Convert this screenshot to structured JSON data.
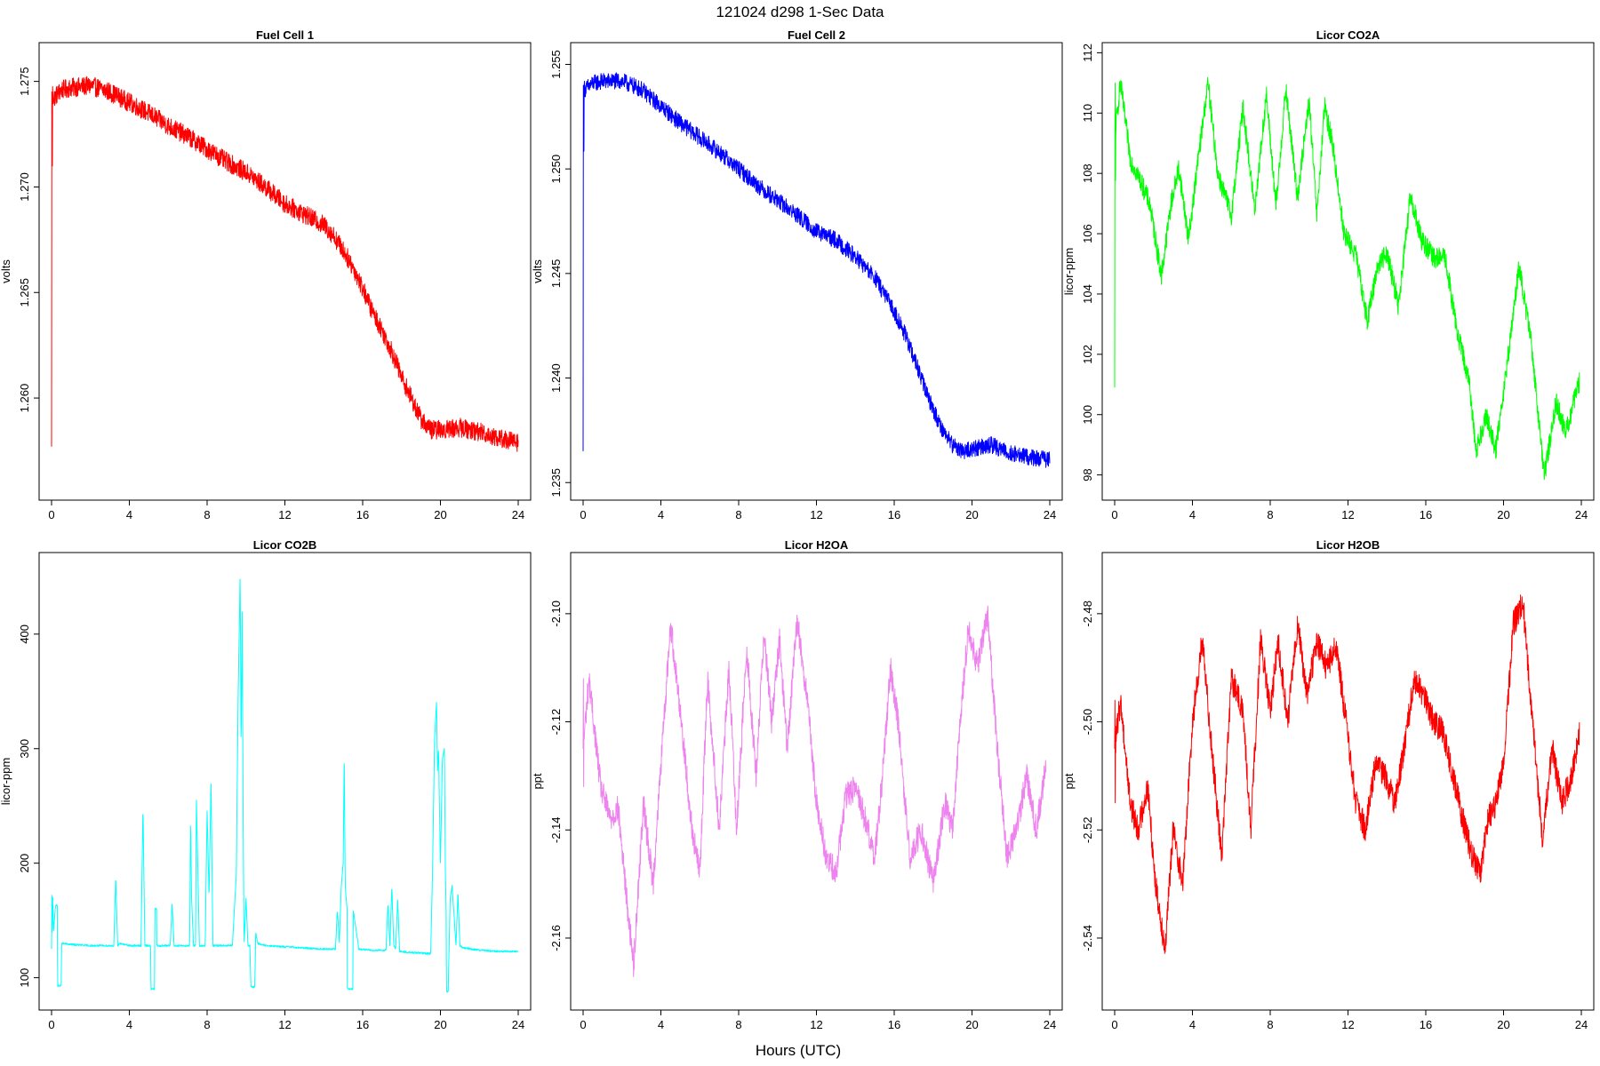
{
  "figure": {
    "title": "121024   d298   1-Sec Data",
    "xlabel": "Hours (UTC)"
  },
  "chart_data": [
    {
      "type": "line",
      "title": "Fuel Cell 1",
      "ylabel": "volts",
      "xlim": [
        0,
        24
      ],
      "ylim": [
        1.2555,
        1.2765
      ],
      "xticks": [
        0,
        4,
        8,
        12,
        16,
        20,
        24
      ],
      "yticks": [
        1.26,
        1.265,
        1.27,
        1.275
      ],
      "ytick_labels": [
        "1.260",
        "1.265",
        "1.270",
        "1.275"
      ],
      "color": "#ff0000",
      "noise": 0.00045,
      "series": [
        {
          "x": [
            0,
            0.05,
            0.1,
            0.5,
            1,
            2,
            3,
            4,
            5,
            6,
            7,
            8,
            9,
            10,
            11,
            12,
            13,
            14,
            14.5,
            15,
            15.5,
            16,
            16.5,
            17,
            17.5,
            18,
            18.5,
            19,
            19.5,
            20,
            21,
            22,
            23,
            24
          ],
          "values": [
            1.2577,
            1.2745,
            1.2742,
            1.2746,
            1.2747,
            1.2748,
            1.2745,
            1.274,
            1.2735,
            1.2729,
            1.2724,
            1.2718,
            1.2712,
            1.2707,
            1.27,
            1.2692,
            1.2687,
            1.2682,
            1.2677,
            1.267,
            1.2662,
            1.2652,
            1.2641,
            1.2632,
            1.2622,
            1.261,
            1.26,
            1.259,
            1.2585,
            1.2585,
            1.2586,
            1.2584,
            1.2581,
            1.2579
          ]
        }
      ]
    },
    {
      "type": "line",
      "title": "Fuel Cell 2",
      "ylabel": "volts",
      "xlim": [
        0,
        24
      ],
      "ylim": [
        1.2345,
        1.2557
      ],
      "xticks": [
        0,
        4,
        8,
        12,
        16,
        20,
        24
      ],
      "yticks": [
        1.235,
        1.24,
        1.245,
        1.25,
        1.255
      ],
      "ytick_labels": [
        "1.235",
        "1.240",
        "1.245",
        "1.250",
        "1.255"
      ],
      "color": "#0000ff",
      "noise": 0.0004,
      "series": [
        {
          "x": [
            0,
            0.05,
            0.1,
            0.5,
            1,
            2,
            3,
            4,
            5,
            6,
            7,
            8,
            9,
            10,
            11,
            12,
            13,
            14,
            15,
            16,
            16.5,
            17,
            17.5,
            18,
            18.5,
            19,
            19.5,
            20,
            21,
            22,
            23,
            24
          ],
          "values": [
            1.2365,
            1.254,
            1.2538,
            1.2541,
            1.2542,
            1.2542,
            1.2538,
            1.253,
            1.2522,
            1.2515,
            1.2508,
            1.25,
            1.2492,
            1.2485,
            1.2478,
            1.247,
            1.2466,
            1.2458,
            1.2448,
            1.2432,
            1.2422,
            1.241,
            1.2397,
            1.2385,
            1.2375,
            1.2368,
            1.2365,
            1.2366,
            1.2368,
            1.2364,
            1.2362,
            1.2361
          ]
        }
      ]
    },
    {
      "type": "line",
      "title": "Licor CO2A",
      "ylabel": "licor-ppm",
      "xlim": [
        0,
        24
      ],
      "ylim": [
        97.4,
        112.1
      ],
      "xticks": [
        0,
        4,
        8,
        12,
        16,
        20,
        24
      ],
      "yticks": [
        98,
        100,
        102,
        104,
        106,
        108,
        110,
        112
      ],
      "ytick_labels": [
        "98",
        "100",
        "102",
        "104",
        "106",
        "108",
        "110",
        "112"
      ],
      "color": "#00ff00",
      "noise": 0.35,
      "series": [
        {
          "x": [
            0,
            0.05,
            0.3,
            0.8,
            1.3,
            1.8,
            2.4,
            2.9,
            3.3,
            3.8,
            4.3,
            4.8,
            5.3,
            6.0,
            6.6,
            7.2,
            7.8,
            8.3,
            8.8,
            9.4,
            10.0,
            10.4,
            10.8,
            11.2,
            11.8,
            12.4,
            13.0,
            13.5,
            14.0,
            14.6,
            15.2,
            15.8,
            16.4,
            17.0,
            17.6,
            18.2,
            18.6,
            19.1,
            19.6,
            20.2,
            20.8,
            21.4,
            22.1,
            22.7,
            23.2,
            23.9
          ],
          "values": [
            100.9,
            109.5,
            111.0,
            108.5,
            107.8,
            107.0,
            104.6,
            107.0,
            108.2,
            105.8,
            108.5,
            111.0,
            108.0,
            106.6,
            110.2,
            106.8,
            110.6,
            106.9,
            110.8,
            107.2,
            110.4,
            106.6,
            110.2,
            109.0,
            106.0,
            105.3,
            103.1,
            104.9,
            105.4,
            103.6,
            107.2,
            105.8,
            105.2,
            105.2,
            102.8,
            101.2,
            98.8,
            100.0,
            98.8,
            101.8,
            104.9,
            102.5,
            98.0,
            100.4,
            99.4,
            101.1
          ]
        }
      ]
    },
    {
      "type": "line",
      "title": "Licor CO2B",
      "ylabel": "licor-ppm",
      "xlim": [
        0,
        24
      ],
      "ylim": [
        78,
        465
      ],
      "xticks": [
        0,
        4,
        8,
        12,
        16,
        20,
        24
      ],
      "yticks": [
        100,
        200,
        300,
        400
      ],
      "ytick_labels": [
        "100",
        "200",
        "300",
        "400"
      ],
      "color": "#00ffff",
      "noise": 0.8,
      "series": [
        {
          "x": [
            0,
            0.05,
            0.1,
            0.2,
            0.3,
            0.31,
            0.4,
            0.41,
            0.5,
            0.51,
            1.0,
            2.0,
            3.2,
            3.3,
            3.4,
            3.5,
            4.0,
            4.6,
            4.7,
            4.8,
            4.9,
            5.1,
            5.11,
            5.3,
            5.31,
            5.4,
            5.41,
            5.7,
            6.1,
            6.2,
            6.3,
            6.4,
            6.8,
            7.1,
            7.15,
            7.2,
            7.3,
            7.4,
            7.45,
            7.6,
            7.9,
            8.0,
            8.1,
            8.2,
            8.3,
            8.6,
            9.3,
            9.5,
            9.6,
            9.7,
            9.75,
            9.8,
            9.85,
            9.9,
            10.0,
            10.1,
            10.2,
            10.25,
            10.3,
            10.45,
            10.5,
            10.6,
            11.0,
            12.0,
            13.0,
            14.0,
            14.6,
            14.7,
            14.8,
            14.9,
            15.0,
            15.05,
            15.1,
            15.2,
            15.21,
            15.5,
            15.51,
            15.8,
            16.5,
            17.2,
            17.3,
            17.4,
            17.5,
            17.6,
            17.7,
            17.8,
            17.9,
            18.5,
            19.5,
            19.6,
            19.7,
            19.8,
            19.85,
            19.9,
            20.0,
            20.1,
            20.2,
            20.25,
            20.3,
            20.31,
            20.4,
            20.5,
            20.6,
            20.8,
            20.9,
            21.0,
            21.2,
            22.0,
            23.0,
            24.0
          ],
          "values": [
            125,
            172,
            140,
            163,
            163,
            93,
            93,
            93,
            93,
            130,
            129,
            128,
            128,
            188,
            128,
            130,
            128,
            128,
            250,
            128,
            128,
            128,
            90,
            90,
            160,
            160,
            128,
            128,
            128,
            165,
            128,
            128,
            128,
            128,
            240,
            170,
            128,
            128,
            258,
            128,
            128,
            245,
            170,
            270,
            128,
            128,
            128,
            190,
            350,
            455,
            300,
            420,
            250,
            128,
            170,
            128,
            128,
            92,
            92,
            92,
            140,
            130,
            128,
            127,
            126,
            125,
            125,
            160,
            130,
            180,
            200,
            295,
            180,
            160,
            90,
            90,
            160,
            125,
            124,
            124,
            165,
            128,
            180,
            128,
            125,
            168,
            123,
            122,
            121,
            200,
            310,
            340,
            280,
            300,
            200,
            290,
            300,
            200,
            150,
            88,
            88,
            170,
            180,
            128,
            175,
            128,
            126,
            124,
            123,
            123
          ]
        }
      ]
    },
    {
      "type": "line",
      "title": "Licor H2OA",
      "ylabel": "ppt",
      "xlim": [
        0,
        24
      ],
      "ylim": [
        -2.172,
        -2.09
      ],
      "xticks": [
        0,
        4,
        8,
        12,
        16,
        20,
        24
      ],
      "yticks": [
        -2.16,
        -2.14,
        -2.12,
        -2.1
      ],
      "ytick_labels": [
        "-2.16",
        "-2.14",
        "-2.12",
        "-2.10"
      ],
      "color": "#ee82ee",
      "noise": 0.0025,
      "series": [
        {
          "x": [
            0,
            0.3,
            0.9,
            1.4,
            1.8,
            2.3,
            2.6,
            3.1,
            3.6,
            4.0,
            4.5,
            5.0,
            5.6,
            6.0,
            6.4,
            7.0,
            7.5,
            7.9,
            8.4,
            8.9,
            9.3,
            9.7,
            10.1,
            10.5,
            11.0,
            11.5,
            12.0,
            12.5,
            13.0,
            13.5,
            14.0,
            14.5,
            15.0,
            15.4,
            15.8,
            16.2,
            16.8,
            17.4,
            18.0,
            18.6,
            19.0,
            19.4,
            19.8,
            20.3,
            20.8,
            21.3,
            21.8,
            22.3,
            22.8,
            23.3,
            23.8
          ],
          "values": [
            -2.125,
            -2.112,
            -2.132,
            -2.138,
            -2.136,
            -2.155,
            -2.165,
            -2.135,
            -2.15,
            -2.128,
            -2.102,
            -2.118,
            -2.14,
            -2.148,
            -2.112,
            -2.14,
            -2.11,
            -2.14,
            -2.106,
            -2.13,
            -2.103,
            -2.12,
            -2.105,
            -2.125,
            -2.101,
            -2.115,
            -2.135,
            -2.145,
            -2.148,
            -2.134,
            -2.132,
            -2.138,
            -2.145,
            -2.13,
            -2.11,
            -2.12,
            -2.145,
            -2.14,
            -2.15,
            -2.135,
            -2.14,
            -2.12,
            -2.103,
            -2.11,
            -2.1,
            -2.125,
            -2.145,
            -2.14,
            -2.13,
            -2.14,
            -2.128
          ]
        }
      ]
    },
    {
      "type": "line",
      "title": "Licor H2OB",
      "ylabel": "ppt",
      "xlim": [
        0,
        24
      ],
      "ylim": [
        -2.552,
        -2.47
      ],
      "xticks": [
        0,
        4,
        8,
        12,
        16,
        20,
        24
      ],
      "yticks": [
        -2.54,
        -2.52,
        -2.5,
        -2.48
      ],
      "ytick_labels": [
        "-2.54",
        "-2.52",
        "-2.50",
        "-2.48"
      ],
      "color": "#ff0000",
      "noise": 0.0025,
      "series": [
        {
          "x": [
            0,
            0.3,
            0.8,
            1.2,
            1.7,
            2.1,
            2.6,
            3.0,
            3.5,
            4.0,
            4.5,
            5.0,
            5.5,
            6.0,
            6.6,
            7.0,
            7.5,
            8.0,
            8.4,
            8.9,
            9.4,
            9.9,
            10.4,
            10.9,
            11.4,
            11.9,
            12.4,
            12.9,
            13.4,
            13.9,
            14.4,
            14.9,
            15.4,
            15.9,
            16.4,
            16.9,
            17.4,
            17.9,
            18.4,
            18.8,
            19.2,
            19.6,
            20.0,
            20.5,
            21.0,
            21.5,
            22.0,
            22.5,
            23.0,
            23.5,
            23.9
          ],
          "values": [
            -2.505,
            -2.496,
            -2.515,
            -2.52,
            -2.512,
            -2.53,
            -2.542,
            -2.52,
            -2.53,
            -2.5,
            -2.485,
            -2.505,
            -2.525,
            -2.492,
            -2.498,
            -2.52,
            -2.485,
            -2.498,
            -2.485,
            -2.5,
            -2.482,
            -2.495,
            -2.485,
            -2.49,
            -2.486,
            -2.5,
            -2.515,
            -2.52,
            -2.508,
            -2.51,
            -2.515,
            -2.505,
            -2.492,
            -2.495,
            -2.5,
            -2.502,
            -2.51,
            -2.518,
            -2.525,
            -2.528,
            -2.518,
            -2.515,
            -2.508,
            -2.482,
            -2.478,
            -2.5,
            -2.522,
            -2.505,
            -2.515,
            -2.51,
            -2.502
          ]
        }
      ]
    }
  ]
}
